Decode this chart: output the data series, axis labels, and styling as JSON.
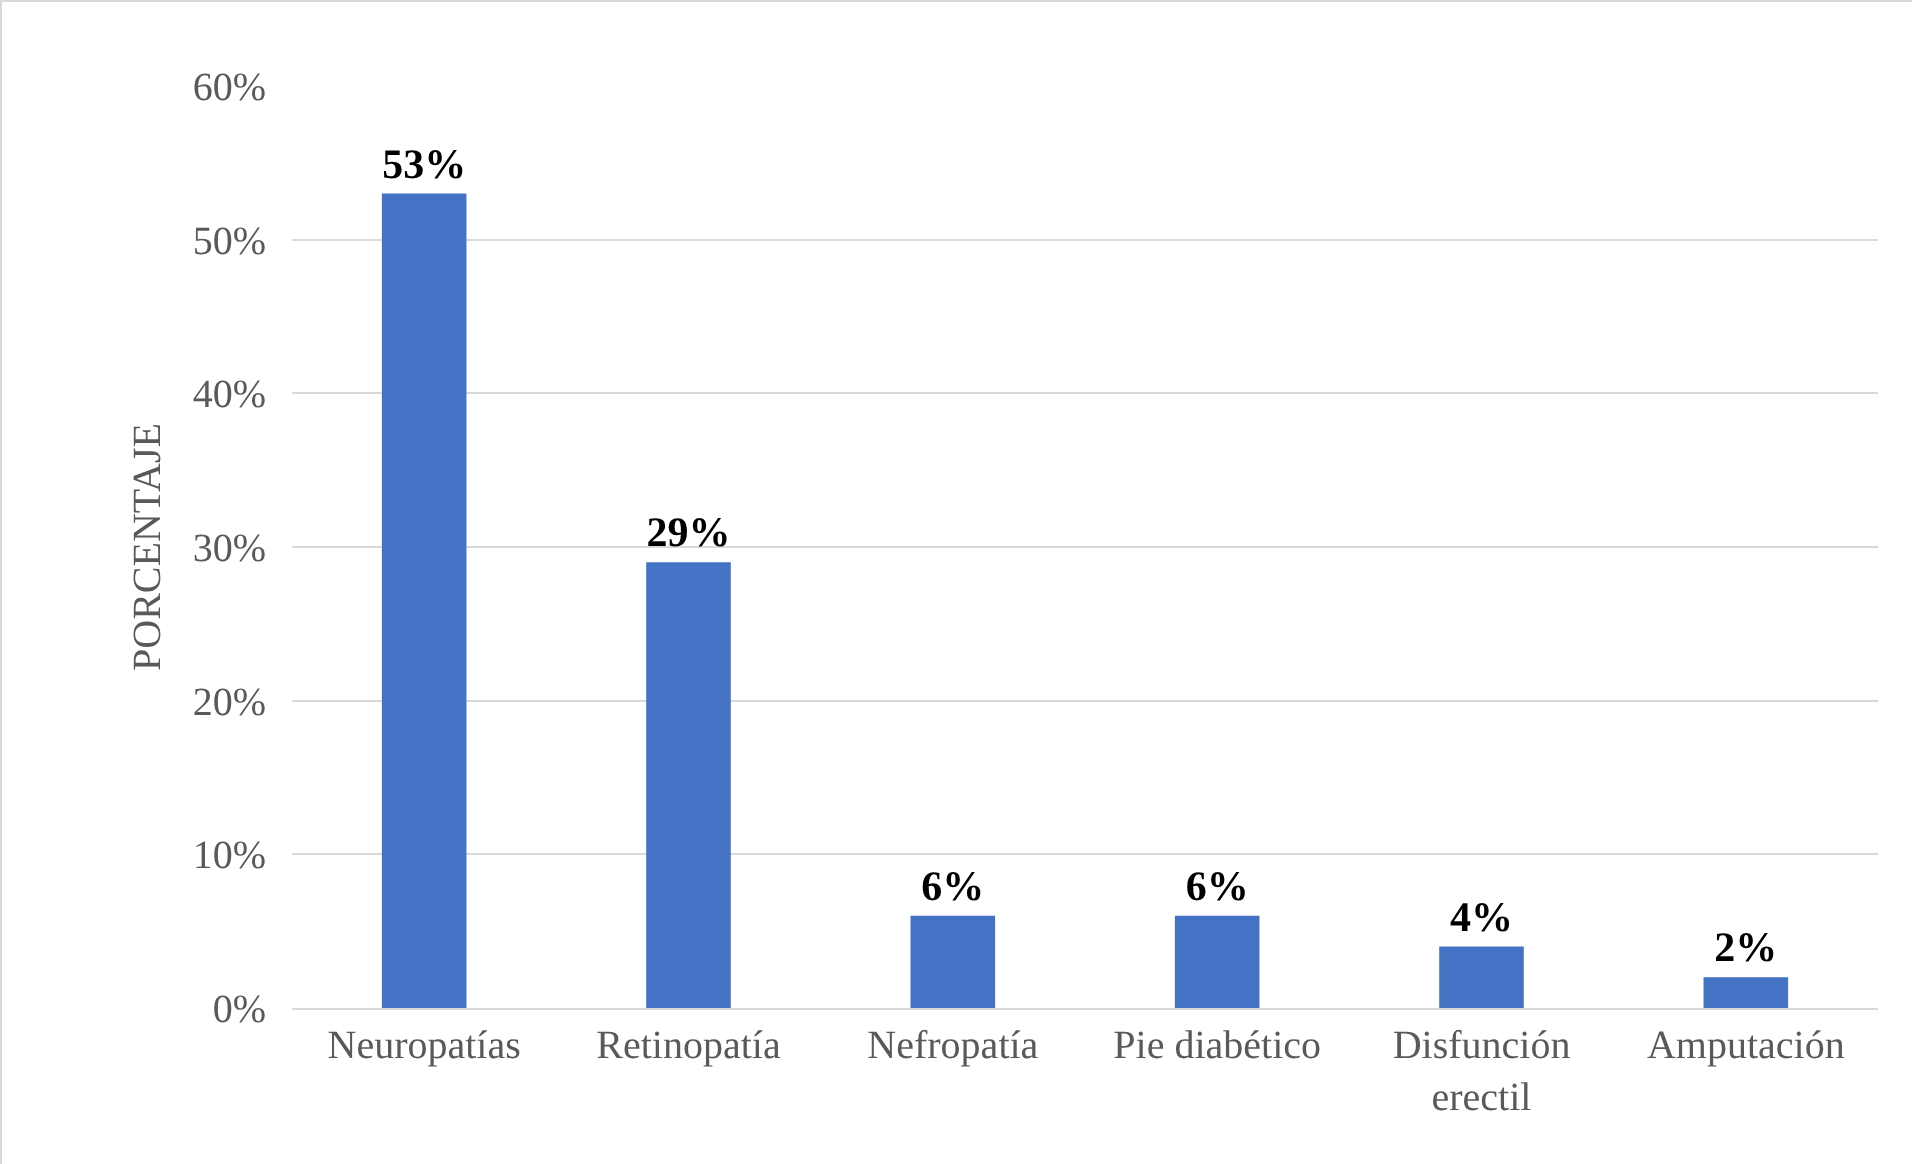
{
  "chart_data": {
    "type": "bar",
    "ylabel": "PORCENTAJE",
    "categories": [
      "Neuropatías",
      "Retinopatía",
      "Nefropatía",
      "Pie diabético",
      "Disfunción erectil",
      "Amputación"
    ],
    "values": [
      53,
      29,
      6,
      6,
      4,
      2
    ],
    "value_labels": [
      "53%",
      "29%",
      "6%",
      "6%",
      "4%",
      "2%"
    ],
    "color": "#4472c4",
    "ylim": [
      0,
      60
    ],
    "yticks": [
      {
        "value": 0,
        "label": "0%"
      },
      {
        "value": 10,
        "label": "10%"
      },
      {
        "value": 20,
        "label": "20%"
      },
      {
        "value": 30,
        "label": "30%"
      },
      {
        "value": 40,
        "label": "40%"
      },
      {
        "value": 50,
        "label": "50%"
      },
      {
        "value": 60,
        "label": "60%"
      }
    ],
    "grid": "y"
  }
}
